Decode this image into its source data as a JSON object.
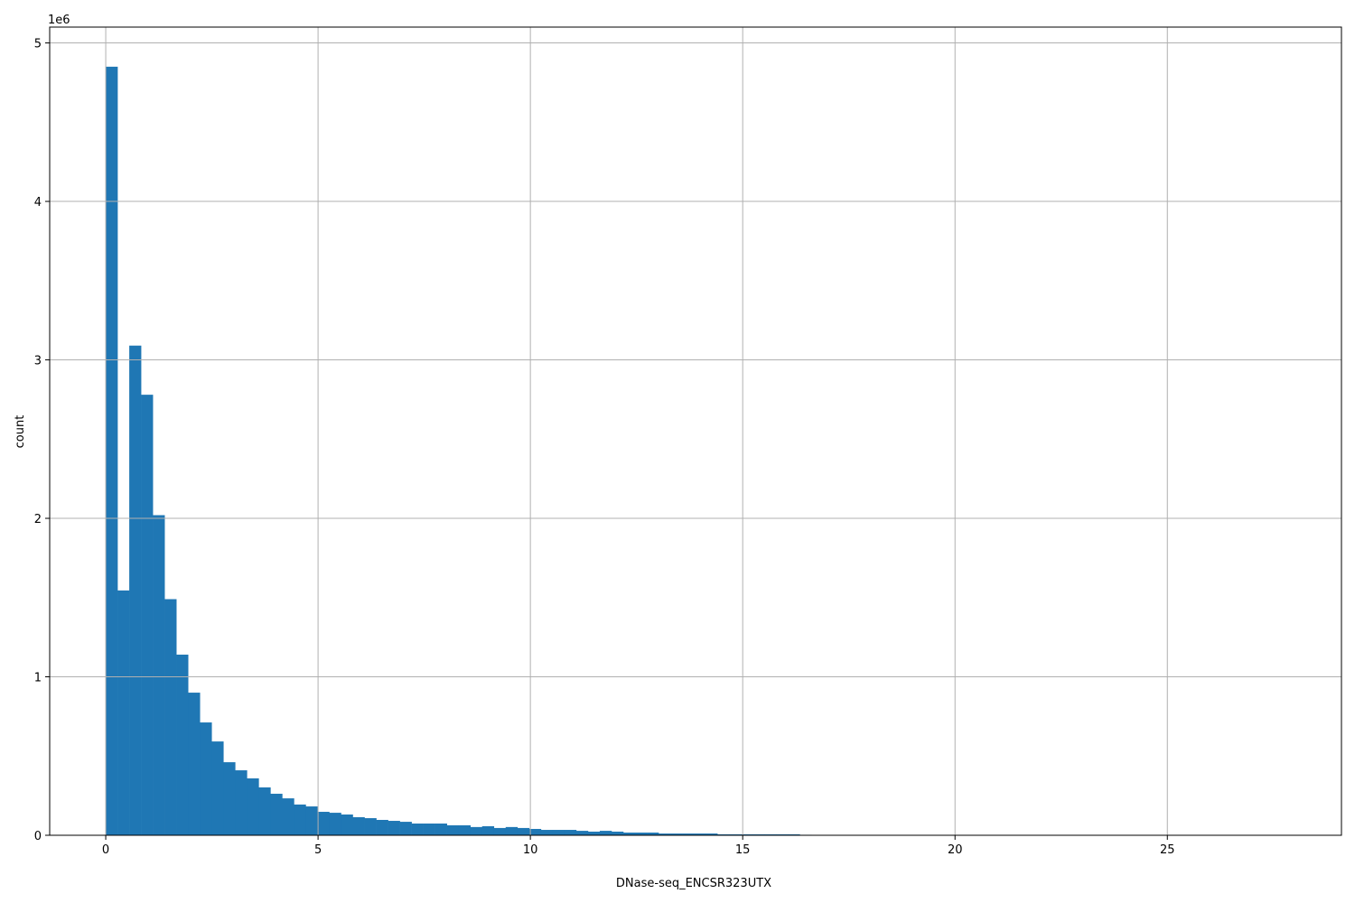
{
  "chart_data": {
    "type": "bar",
    "histogram": true,
    "xlabel": "DNase-seq_ENCSR323UTX",
    "ylabel": "count",
    "y_offset_text": "1e6",
    "xlim": [
      -1.32,
      29.1
    ],
    "ylim": [
      0,
      5100000
    ],
    "grid": true,
    "bar_color": "#1f77b4",
    "grid_color": "#b0b0b0",
    "x_ticks": [
      0,
      5,
      10,
      15,
      20,
      25
    ],
    "x_tick_labels": [
      "0",
      "5",
      "10",
      "15",
      "20",
      "25"
    ],
    "y_ticks": [
      0,
      1000000,
      2000000,
      3000000,
      4000000,
      5000000
    ],
    "y_tick_labels": [
      "0",
      "1",
      "2",
      "3",
      "4",
      "5"
    ],
    "bin_start": 0,
    "bin_width": 0.277,
    "values": [
      4850000,
      1545000,
      3090000,
      2780000,
      2020000,
      1490000,
      1140000,
      900000,
      712000,
      592000,
      461000,
      410000,
      359000,
      302000,
      262000,
      233000,
      194000,
      182000,
      148000,
      142000,
      131000,
      114000,
      108000,
      97000,
      91000,
      85000,
      74000,
      74000,
      74000,
      63000,
      63000,
      52000,
      57000,
      46000,
      52000,
      46000,
      40000,
      34000,
      34000,
      34000,
      28000,
      23000,
      28000,
      23000,
      17000,
      17000,
      17000,
      11000,
      11000,
      11000,
      11000,
      11000,
      6000,
      6000,
      6000,
      6000,
      6000,
      6000,
      6000,
      3000,
      2500,
      2000,
      1800,
      1500,
      1200,
      1000,
      900,
      800,
      700,
      600,
      500,
      400,
      350,
      300,
      250,
      200,
      180,
      160,
      140,
      120,
      100,
      90,
      80,
      70,
      60,
      50,
      40,
      35,
      30,
      25,
      20,
      18,
      15,
      12,
      10,
      8,
      6,
      5,
      3,
      2
    ]
  }
}
